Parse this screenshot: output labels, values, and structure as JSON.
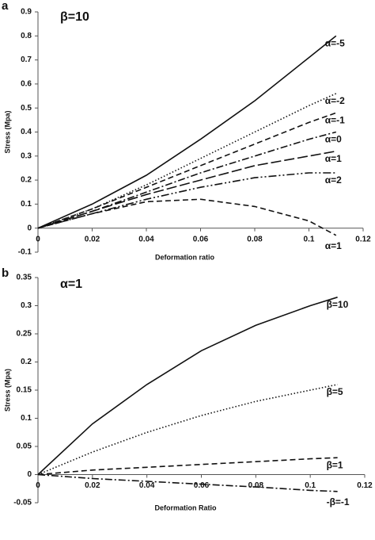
{
  "chart_data": [
    {
      "type": "line",
      "label": "a",
      "title": "β=10",
      "xlabel": "Deformation ratio",
      "ylabel": "Stress (Mpa)",
      "x": [
        0,
        0.02,
        0.04,
        0.06,
        0.08,
        0.1,
        0.11
      ],
      "xlim": [
        0,
        0.12
      ],
      "xticks": [
        0,
        0.02,
        0.04,
        0.06,
        0.08,
        0.1,
        0.12
      ],
      "ylim": [
        -0.1,
        0.9
      ],
      "yticks": [
        -0.1,
        0,
        0.1,
        0.2,
        0.3,
        0.4,
        0.5,
        0.6,
        0.7,
        0.8,
        0.9
      ],
      "series": [
        {
          "name": "α=-5",
          "color": "#111111",
          "dash": "solid",
          "values": [
            0,
            0.1,
            0.22,
            0.37,
            0.53,
            0.71,
            0.8
          ]
        },
        {
          "name": "α=-2",
          "color": "#111111",
          "dash": "dotted",
          "values": [
            0,
            0.08,
            0.18,
            0.29,
            0.4,
            0.51,
            0.56
          ]
        },
        {
          "name": "α=-1",
          "color": "#111111",
          "dash": "dashed",
          "values": [
            0,
            0.08,
            0.17,
            0.26,
            0.35,
            0.44,
            0.48
          ]
        },
        {
          "name": "α=0",
          "color": "#111111",
          "dash": "dashdot",
          "values": [
            0,
            0.07,
            0.15,
            0.23,
            0.3,
            0.37,
            0.4
          ]
        },
        {
          "name": "α=1",
          "color": "#111111",
          "dash": "longdash",
          "values": [
            0,
            0.07,
            0.14,
            0.2,
            0.26,
            0.3,
            0.32
          ]
        },
        {
          "name": "α=2",
          "color": "#111111",
          "dash": "dashdotdot",
          "values": [
            0,
            0.06,
            0.12,
            0.17,
            0.21,
            0.23,
            0.23
          ]
        },
        {
          "name": "α=1",
          "color": "#111111",
          "dash": "dashed",
          "values": [
            0,
            0.06,
            0.11,
            0.12,
            0.09,
            0.03,
            -0.03
          ]
        }
      ]
    },
    {
      "type": "line",
      "label": "b",
      "title": "α=1",
      "xlabel": "Deformation Ratio",
      "ylabel": "Stress (Mpa)",
      "x": [
        0,
        0.02,
        0.04,
        0.06,
        0.08,
        0.1,
        0.11
      ],
      "xlim": [
        0,
        0.12
      ],
      "xticks": [
        0,
        0.02,
        0.04,
        0.06,
        0.08,
        0.1,
        0.12
      ],
      "ylim": [
        -0.05,
        0.35
      ],
      "yticks": [
        -0.05,
        0,
        0.05,
        0.1,
        0.15,
        0.2,
        0.25,
        0.3,
        0.35
      ],
      "series": [
        {
          "name": "β=10",
          "color": "#111111",
          "dash": "solid",
          "values": [
            0,
            0.09,
            0.16,
            0.22,
            0.265,
            0.3,
            0.315
          ]
        },
        {
          "name": "β=5",
          "color": "#111111",
          "dash": "dotted",
          "values": [
            0,
            0.04,
            0.075,
            0.105,
            0.13,
            0.15,
            0.16
          ]
        },
        {
          "name": "β=1",
          "color": "#111111",
          "dash": "dashed",
          "values": [
            0,
            0.008,
            0.013,
            0.018,
            0.023,
            0.028,
            0.03
          ]
        },
        {
          "name": "-β=-1",
          "color": "#111111",
          "dash": "dashdot",
          "values": [
            0,
            -0.007,
            -0.012,
            -0.017,
            -0.022,
            -0.028,
            -0.03
          ]
        }
      ]
    }
  ]
}
